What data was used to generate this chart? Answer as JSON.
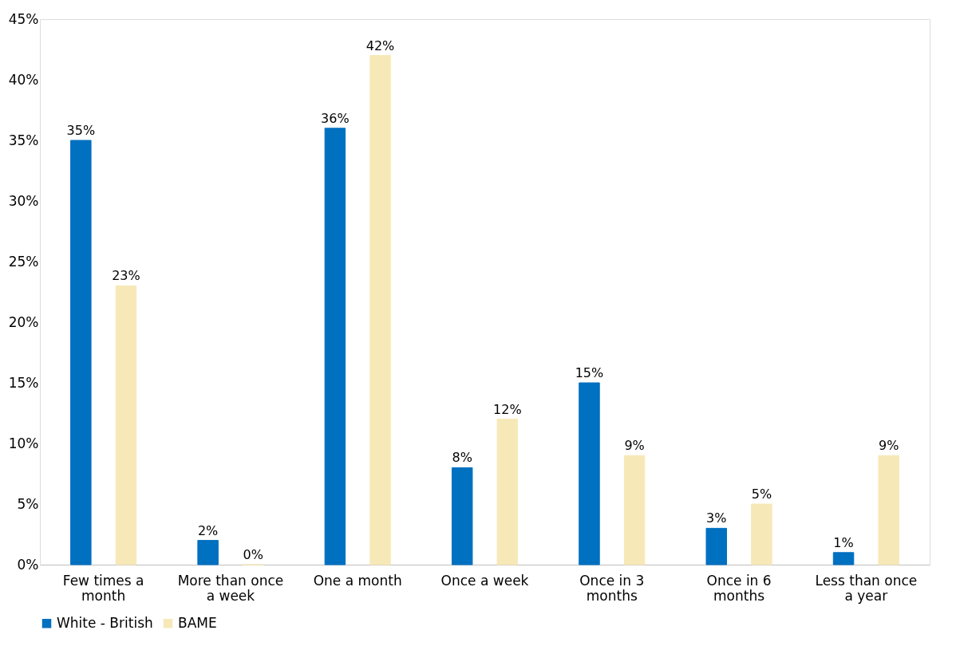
{
  "chart_data": {
    "type": "bar",
    "categories": [
      "Few times a month",
      "More than once a week",
      "One a month",
      "Once a week",
      "Once in 3 months",
      "Once in 6 months",
      "Less than once a year"
    ],
    "series": [
      {
        "name": "White - British",
        "color": "#0070c0",
        "values": [
          35,
          2,
          36,
          8,
          15,
          3,
          1
        ],
        "value_labels": [
          "35%",
          "2%",
          "36%",
          "8%",
          "15%",
          "3%",
          "1%"
        ]
      },
      {
        "name": "BAME",
        "color": "#f7e8b8",
        "values": [
          23,
          0,
          42,
          12,
          9,
          5,
          9
        ],
        "value_labels": [
          "23%",
          "0%",
          "42%",
          "12%",
          "9%",
          "5%",
          "9%"
        ]
      }
    ],
    "ylim": [
      0,
      45
    ],
    "yticks": [
      {
        "value": 0,
        "label": "0%"
      },
      {
        "value": 5,
        "label": "5%"
      },
      {
        "value": 10,
        "label": "10%"
      },
      {
        "value": 15,
        "label": "15%"
      },
      {
        "value": 20,
        "label": "20%"
      },
      {
        "value": 25,
        "label": "25%"
      },
      {
        "value": 30,
        "label": "30%"
      },
      {
        "value": 35,
        "label": "35%"
      },
      {
        "value": 40,
        "label": "40%"
      },
      {
        "value": 45,
        "label": "45%"
      }
    ],
    "grid": false,
    "legend": "bottom"
  }
}
